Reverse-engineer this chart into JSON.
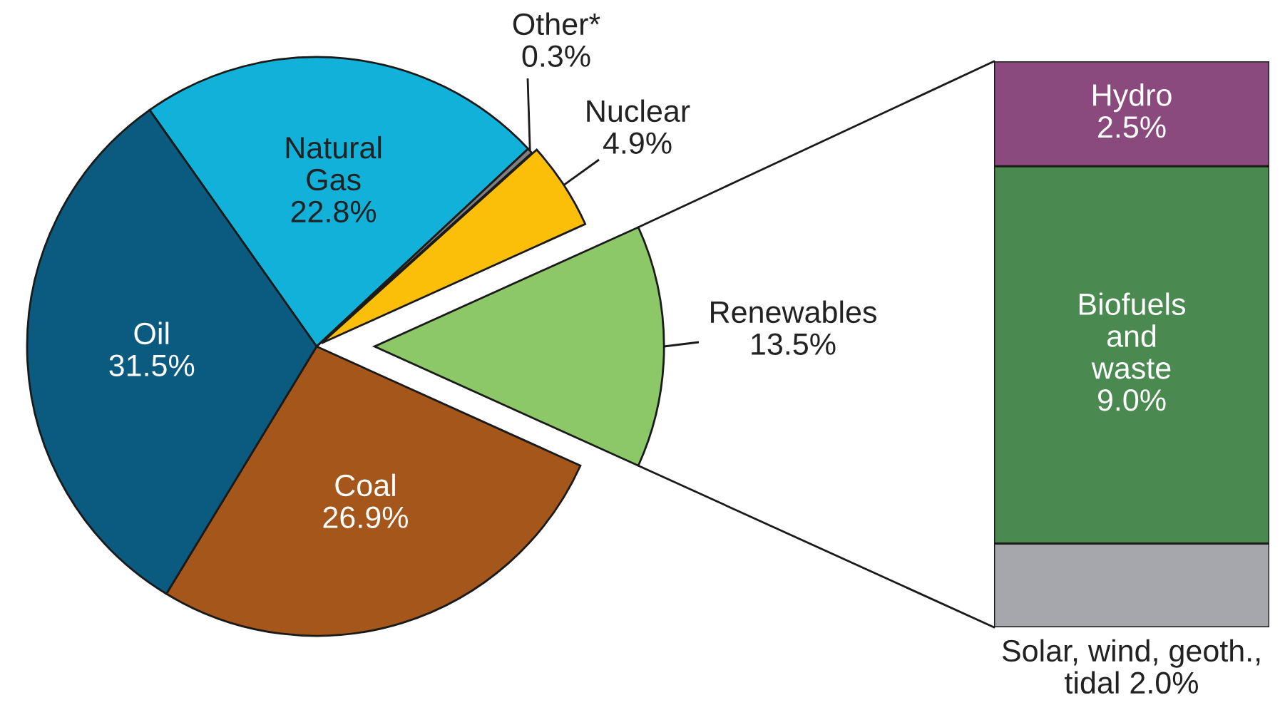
{
  "chart_data": [
    {
      "type": "pie",
      "categories": [
        "Natural\nGas",
        "Other*",
        "Nuclear",
        "Renewables",
        "Coal",
        "Oil"
      ],
      "values": [
        22.8,
        0.3,
        4.9,
        13.5,
        26.9,
        31.5
      ],
      "colors": [
        "#12b1d9",
        "#7f7f7f",
        "#fbbf0a",
        "#8cc768",
        "#a5561b",
        "#0b5b80"
      ],
      "value_labels": [
        "22.8%",
        "0.3%",
        "4.9%",
        "13.5%",
        "26.9%",
        "31.5%"
      ]
    },
    {
      "type": "bar",
      "stacked": true,
      "categories": [
        null
      ],
      "series": [
        {
          "name": "Solar, wind, geoth.,\ntidal",
          "color": "#a6a6ad",
          "values": [
            2.0
          ],
          "value_labels": [
            "2.0%"
          ]
        },
        {
          "name": "Biofuels\nand\nwaste",
          "color": "#4a8a50",
          "values": [
            9.0
          ],
          "value_labels": [
            "9.0%"
          ]
        },
        {
          "name": "Hydro",
          "color": "#8a4a7d",
          "values": [
            2.5
          ],
          "value_labels": [
            "2.5%"
          ]
        }
      ],
      "ylim": [
        0,
        13.5
      ],
      "tick_labels": false
    }
  ]
}
